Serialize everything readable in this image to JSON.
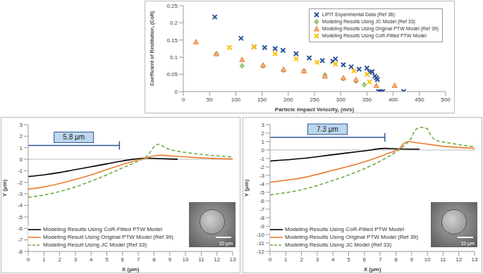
{
  "chart_data": [
    {
      "type": "scatter",
      "x_label": "Particle Impact Velocity, (m/s)",
      "y_label": "Coefficient of Restitution, (CoR)",
      "xlim": [
        0,
        500
      ],
      "xticks": [
        0,
        50,
        100,
        150,
        200,
        250,
        300,
        350,
        400,
        450,
        500
      ],
      "ylim": [
        0,
        0.25
      ],
      "yticks": [
        0,
        0.05,
        0.1,
        0.15,
        0.2,
        0.25
      ],
      "legend": "top-right",
      "series": [
        {
          "name": "LIPIT Experimental Data (Ref 36)",
          "color": "#2f5597",
          "marker": "x",
          "x": [
            60,
            110,
            135,
            155,
            175,
            190,
            215,
            240,
            265,
            285,
            290,
            305,
            320,
            335,
            350,
            355,
            360,
            365,
            368,
            370,
            372,
            376,
            380,
            420
          ],
          "values": [
            0.217,
            0.155,
            0.13,
            0.128,
            0.125,
            0.12,
            0.11,
            0.098,
            0.09,
            0.088,
            0.095,
            0.078,
            0.072,
            0.065,
            0.068,
            0.057,
            0.058,
            0.045,
            0.04,
            0.035,
            0,
            0,
            0,
            0
          ]
        },
        {
          "name": "Modeling Results Using JC Model (Ref 33)",
          "color": "#70ad47",
          "marker": "diamond",
          "x": [
            63,
            112,
            152,
            191,
            230,
            270,
            305,
            329,
            345
          ],
          "values": [
            0.11,
            0.075,
            0.075,
            0.062,
            0.06,
            0.048,
            0.038,
            0.03,
            0.02
          ]
        },
        {
          "name": "Modeling Results Using Original PTW Model (Ref 39)",
          "color": "#ed7d31",
          "marker": "triangle",
          "x": [
            24,
            63,
            112,
            152,
            191,
            230,
            270,
            305,
            329,
            368,
            403
          ],
          "values": [
            0.145,
            0.11,
            0.093,
            0.077,
            0.065,
            0.06,
            0.045,
            0.04,
            0.035,
            0.018,
            0.018
          ]
        },
        {
          "name": "Modeling Results Using CoR-Fitted PTW Model",
          "color": "#ffc000",
          "marker": "x",
          "x": [
            88,
            135,
            175,
            215,
            255,
            290,
            325,
            350,
            355
          ],
          "values": [
            0.128,
            0.13,
            0.11,
            0.095,
            0.085,
            0.08,
            0.06,
            0.05,
            0.028
          ]
        }
      ]
    },
    {
      "type": "line",
      "x_label": "X (µm)",
      "y_label": "Y (µm)",
      "xlim": [
        0,
        13
      ],
      "xticks": [
        0,
        1,
        2,
        3,
        4,
        5,
        6,
        7,
        8,
        9,
        10,
        11,
        12,
        13
      ],
      "ylim": [
        -8,
        3
      ],
      "yticks": [
        -8,
        -7,
        -6,
        -5,
        -4,
        -3,
        -2,
        -1,
        0,
        1,
        2,
        3
      ],
      "legend": "bottom-left",
      "annotations": [
        {
          "text": "5.8 µm",
          "x1": 0,
          "x2": 5.8,
          "y": 1.2
        }
      ],
      "inset": {
        "scale_bar": "10 µm"
      },
      "series": [
        {
          "name": "Modeling Results Using CoR-Fitted PTW Model",
          "color": "#000000",
          "line_style": "solid",
          "x": [
            0,
            1,
            2,
            3,
            4,
            5,
            6,
            6.7,
            7.5,
            8.5,
            9.5
          ],
          "values": [
            -1.5,
            -1.35,
            -1.15,
            -0.9,
            -0.65,
            -0.4,
            -0.15,
            0,
            0.1,
            0.05,
            0
          ]
        },
        {
          "name": "Modeling Result Using Original PTW Model (Ref 39)",
          "color": "#ed7d31",
          "line_style": "solid",
          "x": [
            0,
            1,
            2,
            3,
            4,
            5,
            6,
            7,
            7.5,
            8,
            8.5,
            9,
            10,
            11,
            12,
            13
          ],
          "values": [
            -2.6,
            -2.4,
            -2.1,
            -1.75,
            -1.35,
            -0.9,
            -0.45,
            -0.05,
            0.1,
            0.3,
            0.35,
            0.3,
            0.2,
            0.12,
            0.06,
            0.03
          ]
        },
        {
          "name": "Modeling Result Using JC Model (Ref 33)",
          "color": "#70ad47",
          "line_style": "dashed",
          "x": [
            0,
            1,
            2,
            3,
            4,
            5,
            6,
            7,
            7.5,
            7.8,
            8.0,
            8.3,
            8.6,
            8.9,
            9.5,
            10.5,
            11.5,
            12.5,
            13
          ],
          "values": [
            -3.3,
            -3.1,
            -2.8,
            -2.4,
            -1.9,
            -1.35,
            -0.75,
            -0.15,
            0.2,
            0.7,
            1.1,
            1.3,
            1.1,
            0.9,
            0.7,
            0.5,
            0.35,
            0.25,
            0.2
          ]
        }
      ]
    },
    {
      "type": "line",
      "x_label": "X (µm)",
      "y_label": "Y (µm)",
      "xlim": [
        0,
        13
      ],
      "xticks": [
        0,
        1,
        2,
        3,
        4,
        5,
        6,
        7,
        8,
        9,
        10,
        11,
        12,
        13
      ],
      "ylim": [
        -12,
        3
      ],
      "yticks": [
        -12,
        -11,
        -10,
        -9,
        -8,
        -7,
        -6,
        -5,
        -4,
        -3,
        -2,
        -1,
        0,
        1,
        2,
        3
      ],
      "legend": "bottom-left",
      "annotations": [
        {
          "text": "7.3 µm",
          "x1": 0,
          "x2": 7.3,
          "y": 1.5
        }
      ],
      "inset": {
        "scale_bar": "10 µm"
      },
      "series": [
        {
          "name": "Modeling Results Using CoR-Fitted PTW Model",
          "color": "#000000",
          "line_style": "solid",
          "x": [
            0,
            2,
            4,
            6,
            7.3,
            8,
            9.5
          ],
          "values": [
            -1.3,
            -1.0,
            -0.55,
            -0.1,
            0.2,
            0.15,
            0.1
          ]
        },
        {
          "name": "Modeling Results Using Original PTW Model (Ref 39)",
          "color": "#ed7d31",
          "line_style": "solid",
          "x": [
            0,
            2,
            4,
            6,
            7.5,
            8.3,
            8.5,
            8.8,
            9.2,
            10,
            11,
            12,
            13
          ],
          "values": [
            -3.8,
            -3.3,
            -2.4,
            -1.4,
            -0.4,
            0.3,
            0.8,
            1.0,
            0.9,
            0.7,
            0.45,
            0.3,
            0.2
          ]
        },
        {
          "name": "Modeling Results Using JC Model (Ref 33)",
          "color": "#70ad47",
          "line_style": "dashed",
          "x": [
            0,
            2,
            4,
            6,
            7.5,
            8.5,
            9,
            9.2,
            9.6,
            10,
            10.2,
            10.5,
            11.5,
            12.5,
            13
          ],
          "values": [
            -5.3,
            -4.7,
            -3.6,
            -2.2,
            -0.8,
            0.5,
            1.5,
            2.3,
            2.7,
            2.5,
            1.8,
            1.2,
            0.8,
            0.5,
            0.4
          ]
        }
      ]
    }
  ]
}
